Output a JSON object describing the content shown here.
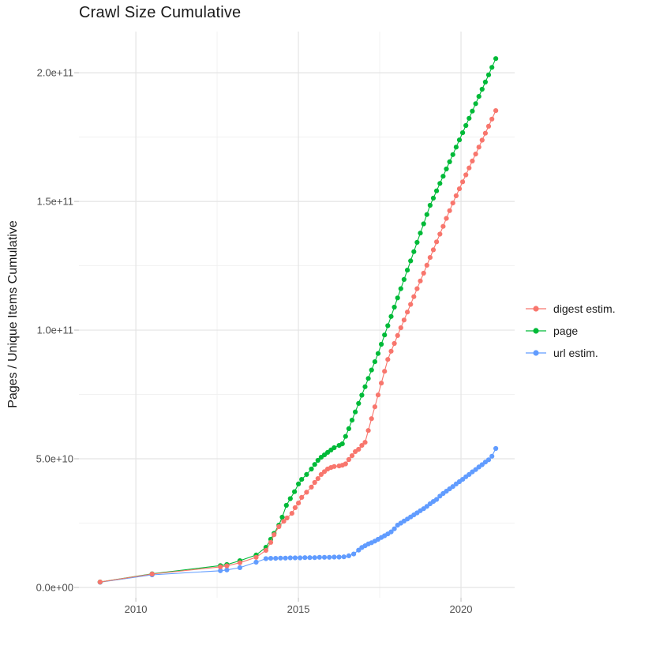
{
  "chart_data": {
    "type": "scatter",
    "title": "Crawl Size Cumulative",
    "xlabel": "",
    "ylabel": "Pages / Unique Items Cumulative",
    "y_value_unit": 1000000000,
    "xlim": [
      2008.25,
      2021.65
    ],
    "ylim_billions": [
      -4,
      216
    ],
    "grid": "major and minor, light gray on white panel",
    "legend_position": "right",
    "x_major_ticks": [
      2010,
      2015,
      2020
    ],
    "x_tick_labels": [
      "2010",
      "2015",
      "2020"
    ],
    "x_minor_ticks": [
      2012.5,
      2017.5
    ],
    "y_major_ticks_billions": [
      0,
      50,
      100,
      150,
      200
    ],
    "y_tick_labels": [
      "0.0e+00",
      "5.0e+10",
      "1.0e+11",
      "1.5e+11",
      "2.0e+11"
    ],
    "y_minor_ticks_billions": [
      25,
      75,
      125,
      175
    ],
    "series": [
      {
        "name": "digest estim.",
        "color": "#F8766D",
        "points_year_value_billions": [
          [
            2008.9,
            2.1
          ],
          [
            2010.5,
            5.2
          ],
          [
            2012.6,
            8.0
          ],
          [
            2012.8,
            8.4
          ],
          [
            2013.2,
            9.6
          ],
          [
            2013.7,
            11.7
          ],
          [
            2014.0,
            14.4
          ],
          [
            2014.15,
            17.5
          ],
          [
            2014.25,
            20.5
          ],
          [
            2014.4,
            23.6
          ],
          [
            2014.55,
            25.7
          ],
          [
            2014.65,
            27.0
          ],
          [
            2014.8,
            28.8
          ],
          [
            2014.9,
            31.0
          ],
          [
            2015.0,
            32.8
          ],
          [
            2015.1,
            35.0
          ],
          [
            2015.25,
            37.0
          ],
          [
            2015.4,
            39.0
          ],
          [
            2015.5,
            40.8
          ],
          [
            2015.6,
            42.3
          ],
          [
            2015.7,
            43.9
          ],
          [
            2015.8,
            45.0
          ],
          [
            2015.9,
            46.0
          ],
          [
            2016.0,
            46.6
          ],
          [
            2016.1,
            47.0
          ],
          [
            2016.25,
            47.2
          ],
          [
            2016.35,
            47.5
          ],
          [
            2016.45,
            48.0
          ],
          [
            2016.55,
            49.7
          ],
          [
            2016.65,
            51.2
          ],
          [
            2016.75,
            52.8
          ],
          [
            2016.85,
            53.7
          ],
          [
            2016.95,
            55.2
          ],
          [
            2017.05,
            56.4
          ],
          [
            2017.15,
            61.0
          ],
          [
            2017.25,
            65.6
          ],
          [
            2017.35,
            70.2
          ],
          [
            2017.45,
            74.8
          ],
          [
            2017.55,
            79.4
          ],
          [
            2017.65,
            84.0
          ],
          [
            2017.75,
            88.6
          ],
          [
            2017.85,
            91.8
          ],
          [
            2017.95,
            94.8
          ],
          [
            2018.05,
            97.9
          ],
          [
            2018.15,
            100.9
          ],
          [
            2018.25,
            103.9
          ],
          [
            2018.35,
            107.0
          ],
          [
            2018.45,
            110.0
          ],
          [
            2018.55,
            113.0
          ],
          [
            2018.65,
            116.1
          ],
          [
            2018.75,
            119.1
          ],
          [
            2018.85,
            122.1
          ],
          [
            2018.95,
            125.2
          ],
          [
            2019.05,
            128.2
          ],
          [
            2019.15,
            131.2
          ],
          [
            2019.25,
            134.3
          ],
          [
            2019.35,
            137.3
          ],
          [
            2019.45,
            140.3
          ],
          [
            2019.55,
            143.4
          ],
          [
            2019.65,
            146.4
          ],
          [
            2019.75,
            149.4
          ],
          [
            2019.85,
            152.2
          ],
          [
            2019.95,
            154.9
          ],
          [
            2020.05,
            157.6
          ],
          [
            2020.15,
            160.3
          ],
          [
            2020.25,
            163.0
          ],
          [
            2020.35,
            165.7
          ],
          [
            2020.45,
            168.4
          ],
          [
            2020.55,
            171.1
          ],
          [
            2020.65,
            173.8
          ],
          [
            2020.75,
            176.5
          ],
          [
            2020.85,
            179.2
          ],
          [
            2020.95,
            182.0
          ],
          [
            2021.07,
            185.3
          ]
        ]
      },
      {
        "name": "page",
        "color": "#00BA38",
        "points_year_value_billions": [
          [
            2008.9,
            2.1
          ],
          [
            2010.5,
            5.3
          ],
          [
            2012.6,
            8.5
          ],
          [
            2012.8,
            8.9
          ],
          [
            2013.2,
            10.4
          ],
          [
            2013.7,
            12.6
          ],
          [
            2014.0,
            15.6
          ],
          [
            2014.15,
            18.7
          ],
          [
            2014.25,
            21.0
          ],
          [
            2014.4,
            24.2
          ],
          [
            2014.5,
            27.3
          ],
          [
            2014.63,
            31.9
          ],
          [
            2014.75,
            34.5
          ],
          [
            2014.88,
            37.2
          ],
          [
            2015.0,
            40.2
          ],
          [
            2015.1,
            42.0
          ],
          [
            2015.25,
            43.9
          ],
          [
            2015.4,
            46.0
          ],
          [
            2015.5,
            47.8
          ],
          [
            2015.6,
            49.4
          ],
          [
            2015.7,
            50.6
          ],
          [
            2015.8,
            51.5
          ],
          [
            2015.9,
            52.5
          ],
          [
            2016.0,
            53.4
          ],
          [
            2016.1,
            54.3
          ],
          [
            2016.25,
            55.2
          ],
          [
            2016.35,
            55.8
          ],
          [
            2016.45,
            58.7
          ],
          [
            2016.55,
            61.7
          ],
          [
            2016.65,
            65.0
          ],
          [
            2016.75,
            68.2
          ],
          [
            2016.85,
            71.5
          ],
          [
            2016.95,
            74.7
          ],
          [
            2017.05,
            78.0
          ],
          [
            2017.15,
            81.2
          ],
          [
            2017.25,
            84.5
          ],
          [
            2017.35,
            87.7
          ],
          [
            2017.45,
            90.9
          ],
          [
            2017.55,
            94.5
          ],
          [
            2017.65,
            98.1
          ],
          [
            2017.75,
            101.7
          ],
          [
            2017.85,
            105.3
          ],
          [
            2017.95,
            108.9
          ],
          [
            2018.05,
            112.5
          ],
          [
            2018.15,
            116.1
          ],
          [
            2018.25,
            119.7
          ],
          [
            2018.35,
            123.3
          ],
          [
            2018.45,
            126.9
          ],
          [
            2018.55,
            130.5
          ],
          [
            2018.65,
            134.1
          ],
          [
            2018.75,
            137.7
          ],
          [
            2018.85,
            141.3
          ],
          [
            2018.95,
            144.9
          ],
          [
            2019.05,
            148.5
          ],
          [
            2019.15,
            151.3
          ],
          [
            2019.25,
            154.1
          ],
          [
            2019.35,
            157.0
          ],
          [
            2019.45,
            159.8
          ],
          [
            2019.55,
            162.6
          ],
          [
            2019.65,
            165.4
          ],
          [
            2019.75,
            168.2
          ],
          [
            2019.85,
            171.1
          ],
          [
            2019.95,
            173.9
          ],
          [
            2020.05,
            176.7
          ],
          [
            2020.15,
            179.5
          ],
          [
            2020.25,
            182.3
          ],
          [
            2020.35,
            185.1
          ],
          [
            2020.45,
            188.0
          ],
          [
            2020.55,
            190.8
          ],
          [
            2020.65,
            193.6
          ],
          [
            2020.75,
            196.4
          ],
          [
            2020.85,
            199.2
          ],
          [
            2020.95,
            202.1
          ],
          [
            2021.07,
            205.5
          ]
        ]
      },
      {
        "name": "url estim.",
        "color": "#619CFF",
        "points_year_value_billions": [
          [
            2008.9,
            2.0
          ],
          [
            2010.5,
            4.9
          ],
          [
            2012.6,
            6.5
          ],
          [
            2012.8,
            6.8
          ],
          [
            2013.2,
            7.7
          ],
          [
            2013.7,
            9.8
          ],
          [
            2014.0,
            11.2
          ],
          [
            2014.15,
            11.3
          ],
          [
            2014.3,
            11.3
          ],
          [
            2014.45,
            11.4
          ],
          [
            2014.6,
            11.4
          ],
          [
            2014.75,
            11.5
          ],
          [
            2014.9,
            11.5
          ],
          [
            2015.05,
            11.5
          ],
          [
            2015.2,
            11.6
          ],
          [
            2015.35,
            11.6
          ],
          [
            2015.5,
            11.6
          ],
          [
            2015.65,
            11.7
          ],
          [
            2015.8,
            11.7
          ],
          [
            2015.95,
            11.7
          ],
          [
            2016.1,
            11.8
          ],
          [
            2016.25,
            11.8
          ],
          [
            2016.4,
            11.9
          ],
          [
            2016.55,
            12.3
          ],
          [
            2016.7,
            13.0
          ],
          [
            2016.85,
            14.5
          ],
          [
            2016.95,
            15.5
          ],
          [
            2017.05,
            16.2
          ],
          [
            2017.15,
            16.9
          ],
          [
            2017.25,
            17.4
          ],
          [
            2017.35,
            18.0
          ],
          [
            2017.45,
            18.7
          ],
          [
            2017.55,
            19.4
          ],
          [
            2017.65,
            20.1
          ],
          [
            2017.75,
            20.8
          ],
          [
            2017.85,
            21.6
          ],
          [
            2017.95,
            22.8
          ],
          [
            2018.05,
            24.2
          ],
          [
            2018.15,
            25.0
          ],
          [
            2018.25,
            25.8
          ],
          [
            2018.35,
            26.6
          ],
          [
            2018.45,
            27.4
          ],
          [
            2018.55,
            28.2
          ],
          [
            2018.65,
            29.0
          ],
          [
            2018.75,
            29.8
          ],
          [
            2018.85,
            30.6
          ],
          [
            2018.95,
            31.5
          ],
          [
            2019.05,
            32.5
          ],
          [
            2019.15,
            33.4
          ],
          [
            2019.25,
            34.2
          ],
          [
            2019.35,
            35.5
          ],
          [
            2019.45,
            36.5
          ],
          [
            2019.55,
            37.4
          ],
          [
            2019.65,
            38.3
          ],
          [
            2019.75,
            39.2
          ],
          [
            2019.85,
            40.2
          ],
          [
            2019.95,
            41.1
          ],
          [
            2020.05,
            42.0
          ],
          [
            2020.15,
            43.0
          ],
          [
            2020.25,
            43.9
          ],
          [
            2020.35,
            44.9
          ],
          [
            2020.45,
            45.8
          ],
          [
            2020.55,
            46.8
          ],
          [
            2020.65,
            47.7
          ],
          [
            2020.75,
            48.7
          ],
          [
            2020.85,
            49.6
          ],
          [
            2020.95,
            51.0
          ],
          [
            2021.07,
            54.0
          ]
        ]
      }
    ],
    "style": {
      "grid_major_color": "#e4e4e4",
      "grid_minor_color": "#f0f0f0",
      "tick_mark_color": "#c8c8c8",
      "tick_label_color": "#4d4d4d",
      "title_color": "#1a1a1a",
      "panel_background": "#ffffff"
    }
  }
}
